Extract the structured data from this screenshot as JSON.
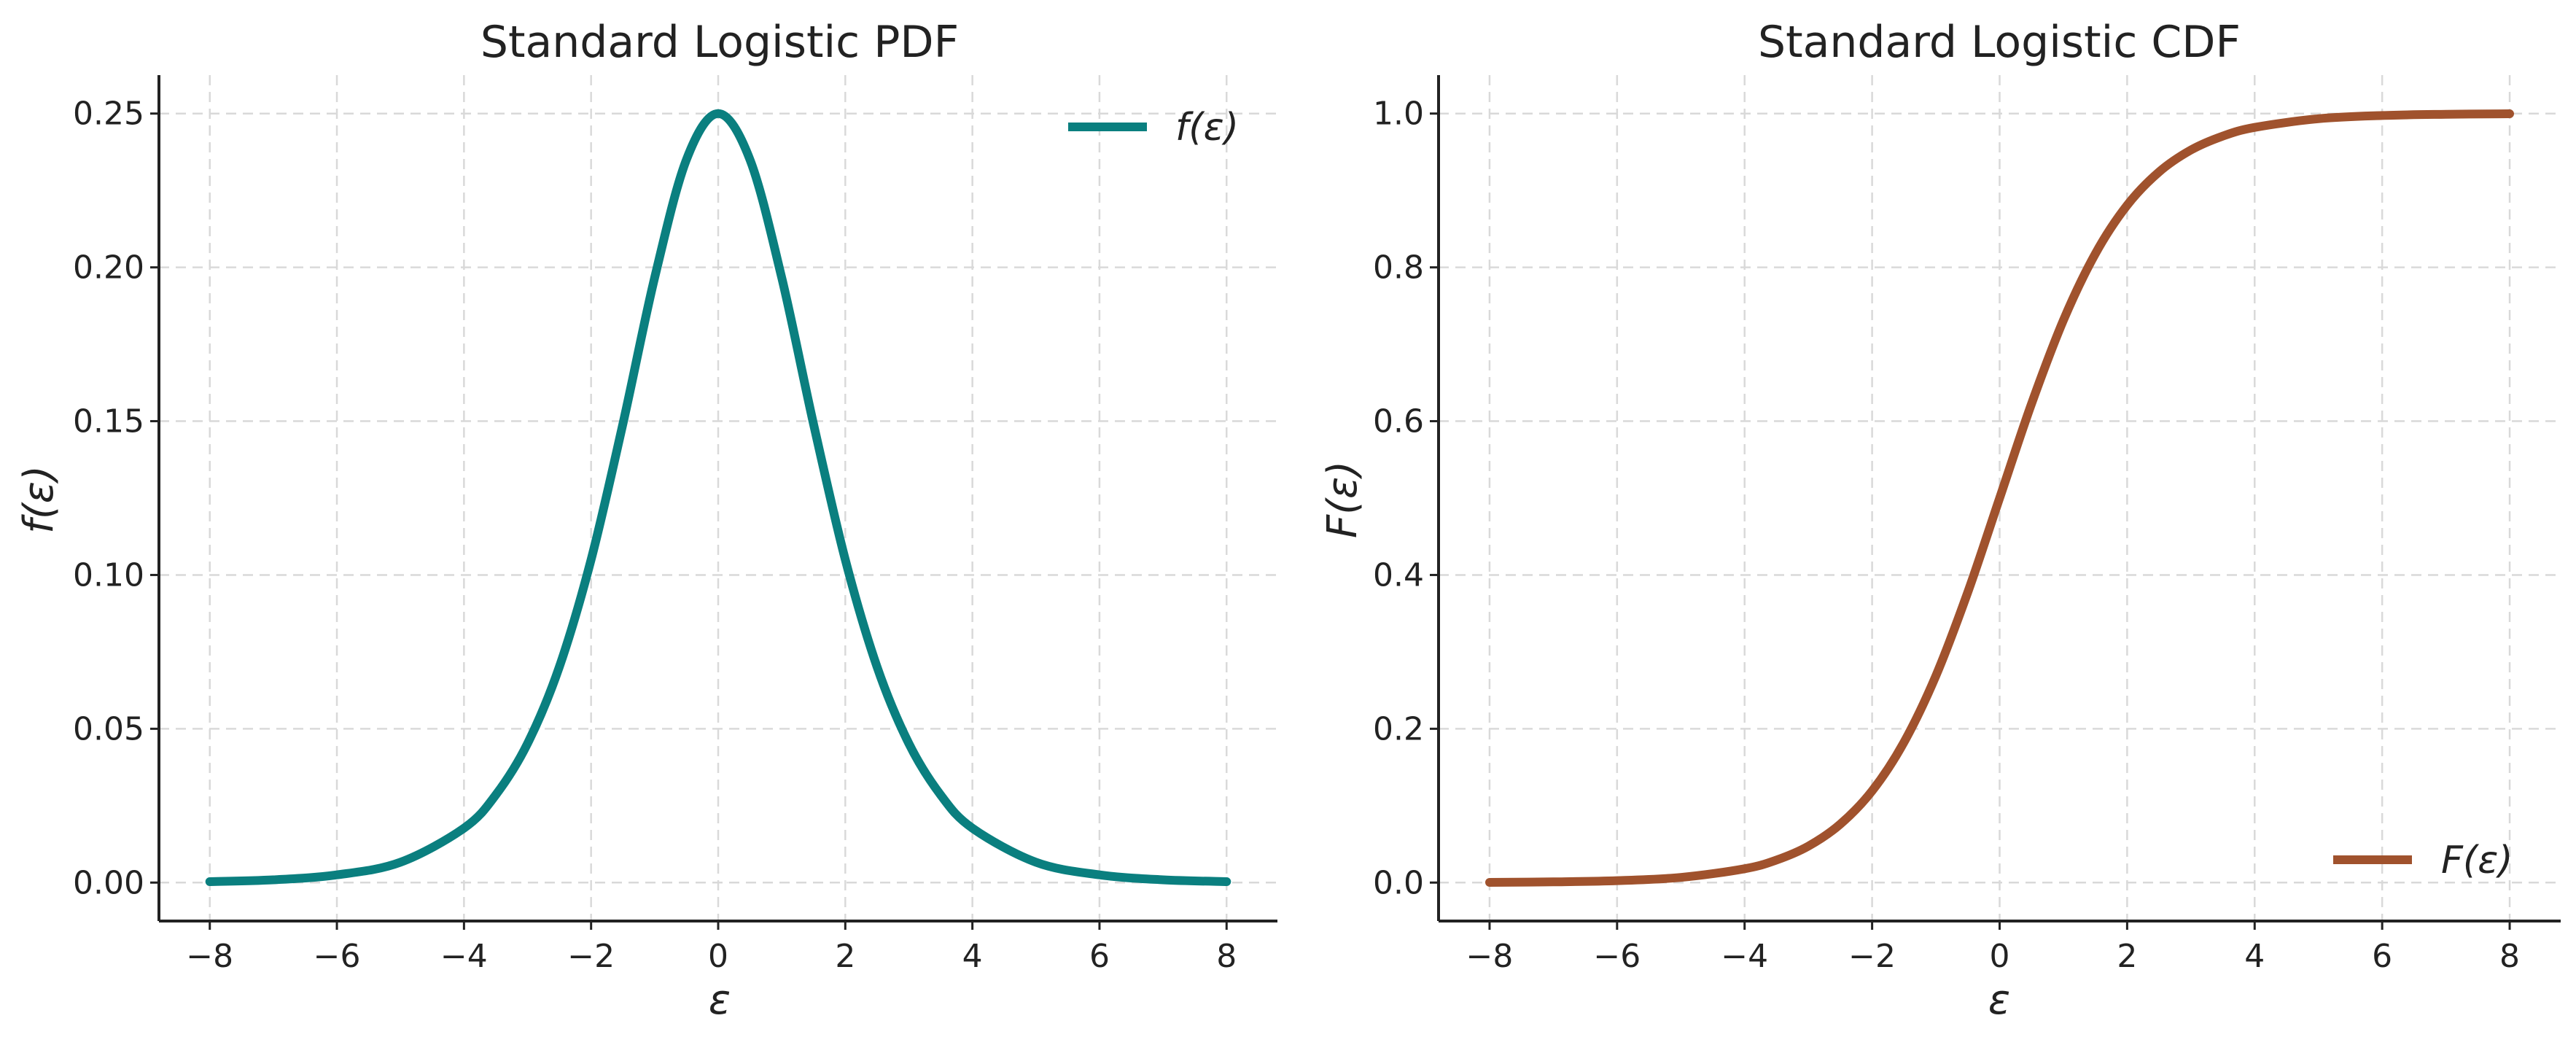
{
  "chart_data": [
    {
      "type": "line",
      "title": "Standard Logistic PDF",
      "xlabel": "ε",
      "ylabel": "f(ε)",
      "xlim": [
        -8.8,
        8.8
      ],
      "ylim": [
        -0.0125,
        0.2625
      ],
      "xticks": [
        -8,
        -6,
        -4,
        -2,
        0,
        2,
        4,
        6,
        8
      ],
      "xtick_labels": [
        "−8",
        "−6",
        "−4",
        "−2",
        "0",
        "2",
        "4",
        "6",
        "8"
      ],
      "yticks": [
        0.0,
        0.05,
        0.1,
        0.15,
        0.2,
        0.25
      ],
      "ytick_labels": [
        "0.00",
        "0.05",
        "0.10",
        "0.15",
        "0.20",
        "0.25"
      ],
      "grid": true,
      "legend_position": "top-right",
      "series": [
        {
          "name": "f(ε)",
          "color": "#0a7f7f",
          "x": [
            -8,
            -7,
            -6,
            -5,
            -4,
            -3.5,
            -3,
            -2.5,
            -2,
            -1.5,
            -1,
            -0.5,
            0,
            0.5,
            1,
            1.5,
            2,
            2.5,
            3,
            3.5,
            4,
            5,
            6,
            7,
            8
          ],
          "y": [
            0.0003,
            0.0009,
            0.0025,
            0.0066,
            0.0177,
            0.0285,
            0.0452,
            0.0701,
            0.105,
            0.1491,
            0.1966,
            0.235,
            0.25,
            0.235,
            0.1966,
            0.1491,
            0.105,
            0.0701,
            0.0452,
            0.0285,
            0.0177,
            0.0066,
            0.0025,
            0.0009,
            0.0003
          ]
        }
      ]
    },
    {
      "type": "line",
      "title": "Standard Logistic CDF",
      "xlabel": "ε",
      "ylabel": "F(ε)",
      "xlim": [
        -8.8,
        8.8
      ],
      "ylim": [
        -0.05,
        1.05
      ],
      "xticks": [
        -8,
        -6,
        -4,
        -2,
        0,
        2,
        4,
        6,
        8
      ],
      "xtick_labels": [
        "−8",
        "−6",
        "−4",
        "−2",
        "0",
        "2",
        "4",
        "6",
        "8"
      ],
      "yticks": [
        0.0,
        0.2,
        0.4,
        0.6,
        0.8,
        1.0
      ],
      "ytick_labels": [
        "0.0",
        "0.2",
        "0.4",
        "0.6",
        "0.8",
        "1.0"
      ],
      "grid": true,
      "legend_position": "bottom-right",
      "series": [
        {
          "name": "F(ε)",
          "color": "#a0522d",
          "x": [
            -8,
            -7,
            -6,
            -5,
            -4,
            -3.5,
            -3,
            -2.5,
            -2,
            -1.5,
            -1,
            -0.5,
            0,
            0.5,
            1,
            1.5,
            2,
            2.5,
            3,
            3.5,
            4,
            5,
            6,
            7,
            8
          ],
          "y": [
            0.0003,
            0.0009,
            0.0025,
            0.0067,
            0.018,
            0.0293,
            0.0474,
            0.0759,
            0.1192,
            0.1824,
            0.2689,
            0.3775,
            0.5,
            0.6225,
            0.7311,
            0.8176,
            0.8808,
            0.9241,
            0.9526,
            0.9707,
            0.982,
            0.9933,
            0.9975,
            0.9991,
            0.9997
          ]
        }
      ]
    }
  ]
}
